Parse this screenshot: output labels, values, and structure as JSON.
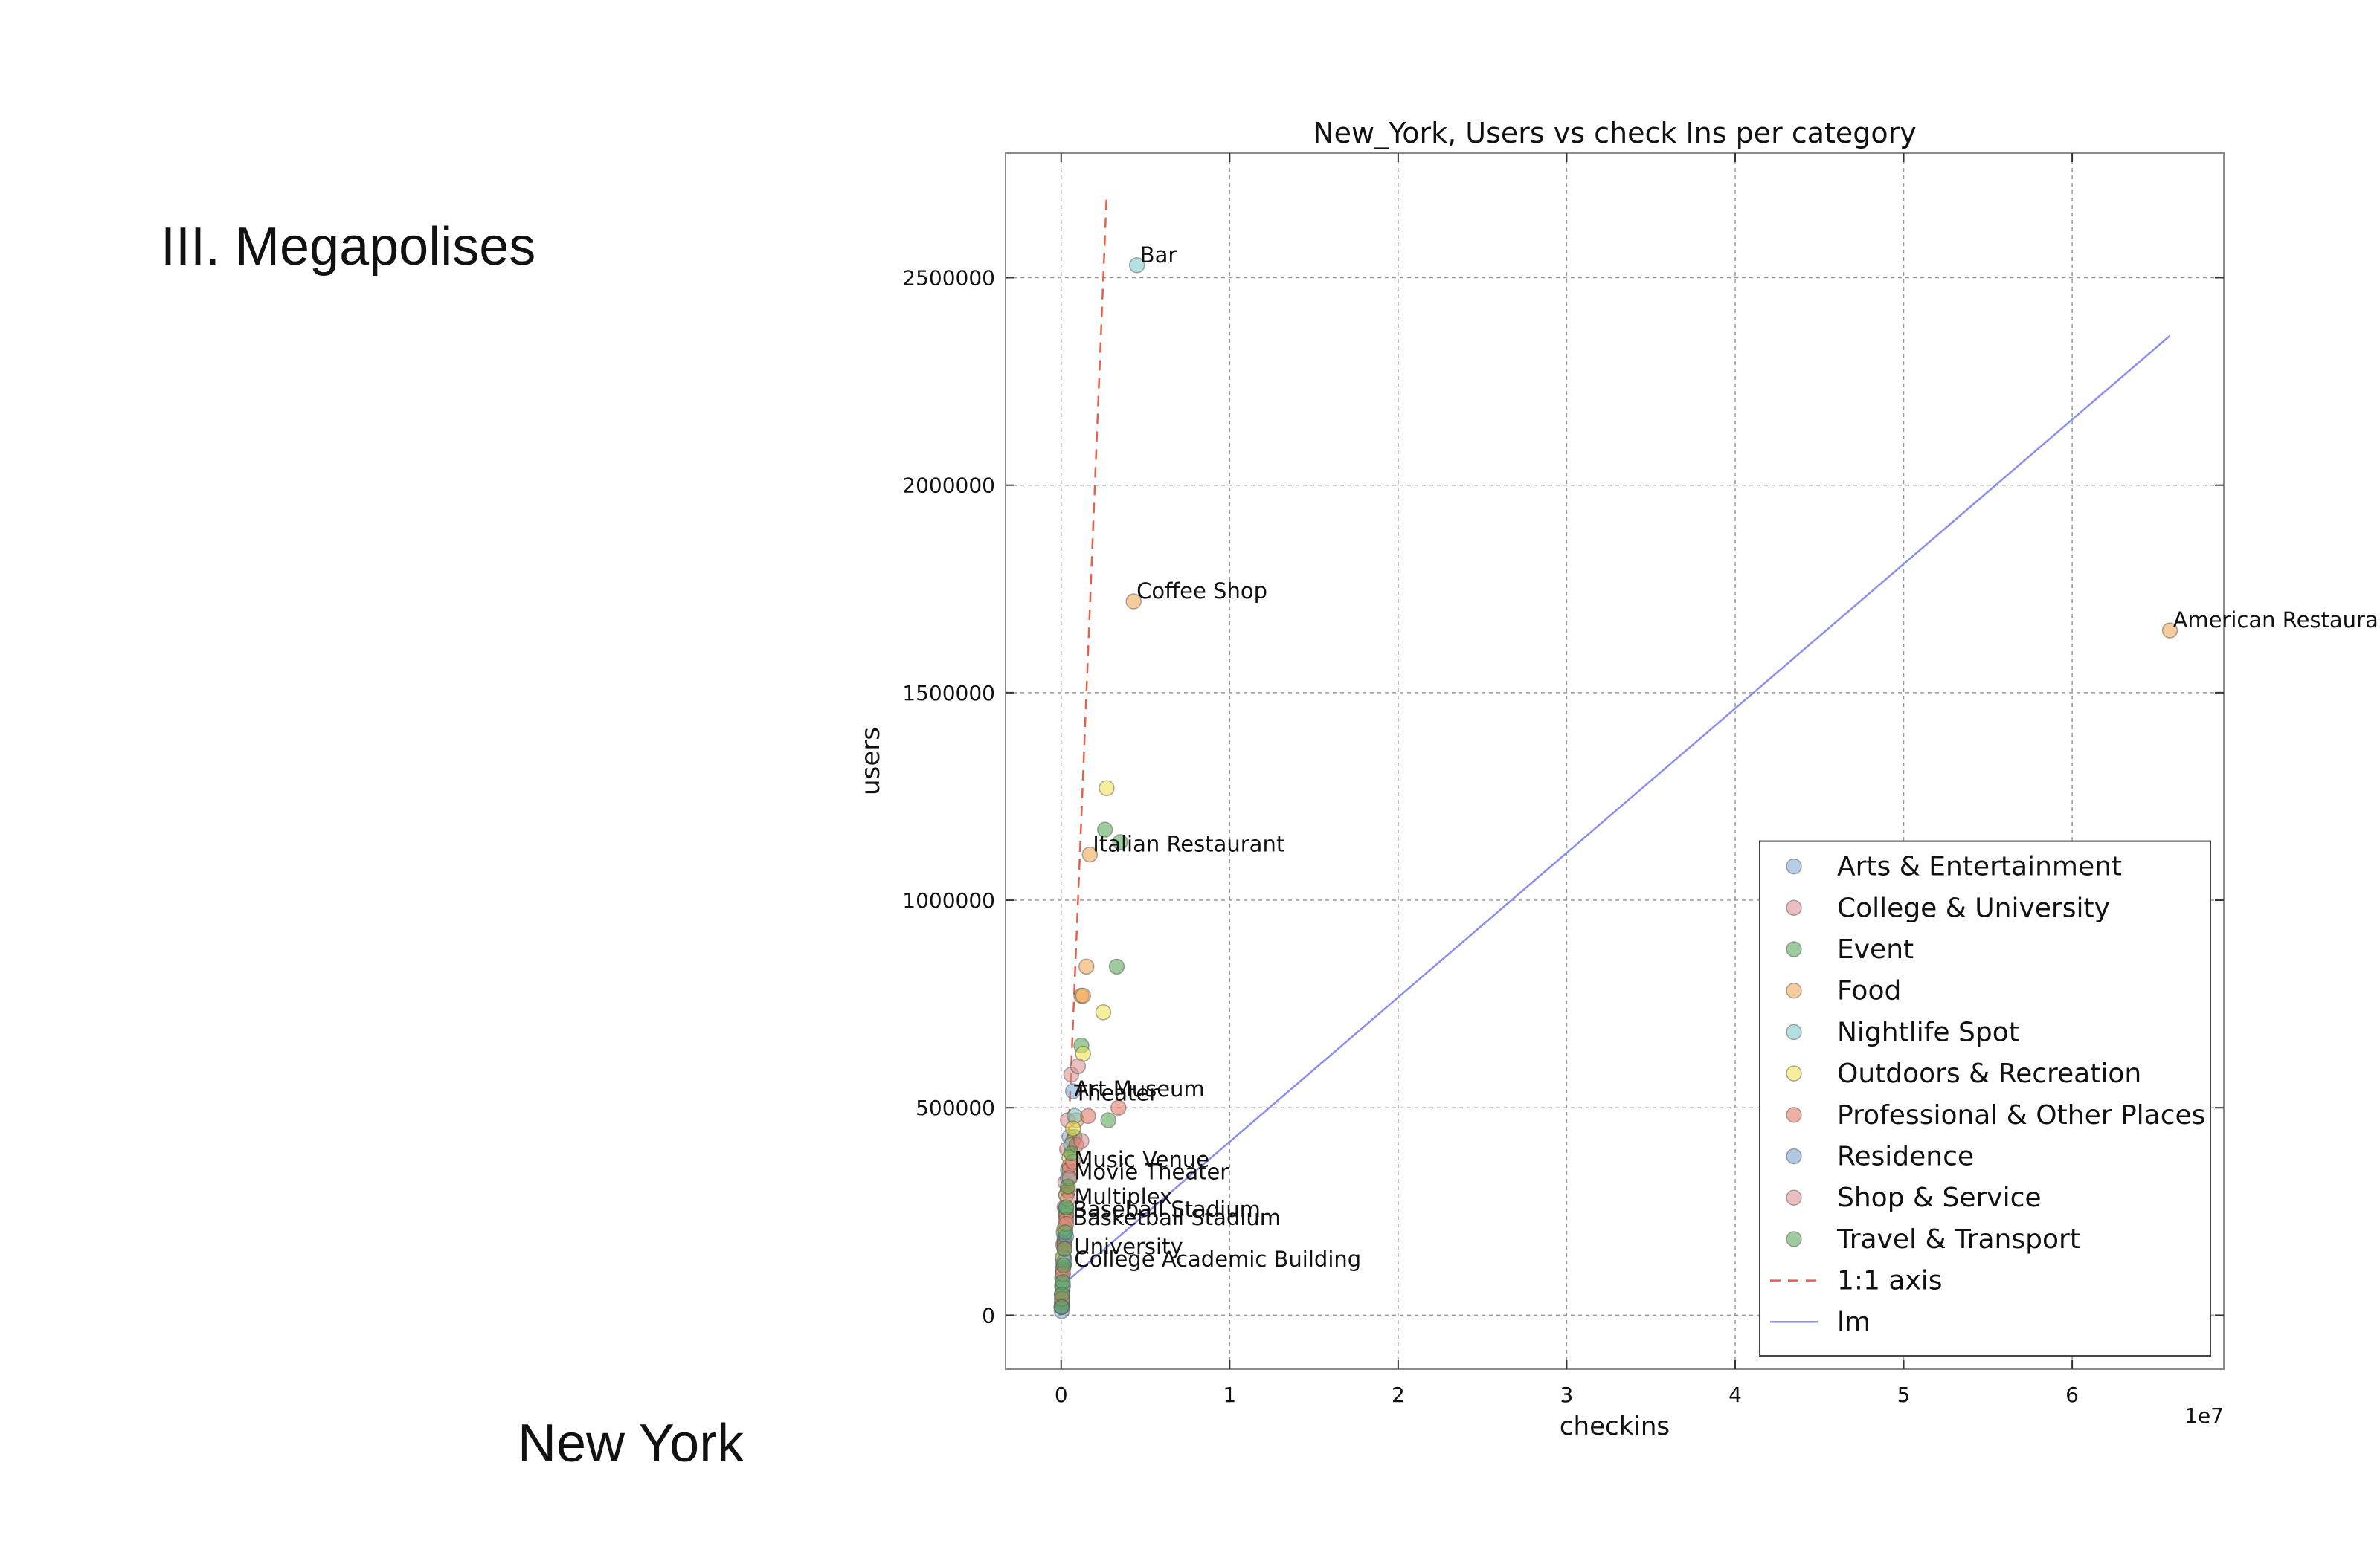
{
  "slide": {
    "heading": "III. Megapolises",
    "caption": "New York"
  },
  "chart_data": {
    "type": "scatter",
    "title": "New_York, Users vs check Ins per category",
    "xlabel": "checkins",
    "ylabel": "users",
    "x_offset_label": "1e7",
    "xlim": [
      -3300000,
      69000000
    ],
    "ylim": [
      -130000,
      2800000
    ],
    "x_ticks": [
      0,
      10000000,
      20000000,
      30000000,
      40000000,
      50000000,
      60000000
    ],
    "x_tick_labels": [
      "0",
      "1",
      "2",
      "3",
      "4",
      "5",
      "6"
    ],
    "y_ticks": [
      0,
      500000,
      1000000,
      1500000,
      2000000,
      2500000
    ],
    "y_tick_labels": [
      "0",
      "500000",
      "1000000",
      "1500000",
      "2000000",
      "2500000"
    ],
    "grid": true,
    "legend_position": "lower-right",
    "series": [
      {
        "name": "Arts & Entertainment",
        "color": "#7ba6d6",
        "points": [
          [
            700000,
            540000
          ],
          [
            500000,
            430000
          ],
          [
            400000,
            350000
          ],
          [
            300000,
            290000
          ],
          [
            300000,
            240000
          ],
          [
            250000,
            210000
          ],
          [
            200000,
            180000
          ],
          [
            150000,
            140000
          ],
          [
            100000,
            100000
          ],
          [
            80000,
            60000
          ],
          [
            50000,
            30000
          ],
          [
            30000,
            10000
          ]
        ]
      },
      {
        "name": "College & University",
        "color": "#d98a8a",
        "points": [
          [
            600000,
            580000
          ],
          [
            400000,
            470000
          ],
          [
            350000,
            400000
          ],
          [
            250000,
            320000
          ],
          [
            200000,
            260000
          ],
          [
            150000,
            200000
          ],
          [
            120000,
            170000
          ],
          [
            100000,
            130000
          ],
          [
            60000,
            90000
          ],
          [
            40000,
            50000
          ],
          [
            20000,
            20000
          ]
        ]
      },
      {
        "name": "Event",
        "color": "#4ea34e",
        "points": [
          [
            2600000,
            1170000
          ],
          [
            3500000,
            1140000
          ],
          [
            3300000,
            840000
          ],
          [
            2800000,
            470000
          ],
          [
            1200000,
            650000
          ],
          [
            800000,
            430000
          ],
          [
            500000,
            330000
          ],
          [
            300000,
            250000
          ],
          [
            200000,
            180000
          ],
          [
            150000,
            120000
          ],
          [
            100000,
            70000
          ],
          [
            50000,
            30000
          ]
        ]
      },
      {
        "name": "Food",
        "color": "#f0a24a",
        "points": [
          [
            4300000,
            1720000
          ],
          [
            65800000,
            1650000
          ],
          [
            1700000,
            1110000
          ],
          [
            1500000,
            840000
          ],
          [
            1200000,
            770000
          ],
          [
            1300000,
            770000
          ],
          [
            900000,
            470000
          ],
          [
            700000,
            420000
          ],
          [
            500000,
            350000
          ],
          [
            400000,
            300000
          ],
          [
            300000,
            240000
          ],
          [
            200000,
            170000
          ],
          [
            100000,
            110000
          ],
          [
            50000,
            50000
          ]
        ]
      },
      {
        "name": "Nightlife Spot",
        "color": "#74c8c8",
        "points": [
          [
            4500000,
            2530000
          ],
          [
            800000,
            480000
          ],
          [
            600000,
            410000
          ],
          [
            400000,
            330000
          ],
          [
            300000,
            260000
          ],
          [
            200000,
            190000
          ],
          [
            150000,
            140000
          ],
          [
            80000,
            80000
          ]
        ]
      },
      {
        "name": "Outdoors & Recreation",
        "color": "#ece24a",
        "points": [
          [
            2700000,
            1270000
          ],
          [
            2500000,
            730000
          ],
          [
            1300000,
            630000
          ],
          [
            700000,
            450000
          ],
          [
            500000,
            380000
          ],
          [
            300000,
            290000
          ],
          [
            200000,
            210000
          ],
          [
            100000,
            140000
          ],
          [
            50000,
            70000
          ]
        ]
      },
      {
        "name": "Professional & Other Places",
        "color": "#e0705a",
        "points": [
          [
            3400000,
            500000
          ],
          [
            1600000,
            480000
          ],
          [
            900000,
            410000
          ],
          [
            500000,
            360000
          ],
          [
            400000,
            300000
          ],
          [
            300000,
            230000
          ],
          [
            200000,
            170000
          ],
          [
            100000,
            110000
          ],
          [
            50000,
            40000
          ]
        ]
      },
      {
        "name": "Residence",
        "color": "#6f9ac8",
        "points": [
          [
            300000,
            190000
          ],
          [
            200000,
            130000
          ],
          [
            100000,
            70000
          ],
          [
            50000,
            20000
          ]
        ]
      },
      {
        "name": "Shop & Service",
        "color": "#d98a8a",
        "points": [
          [
            1000000,
            600000
          ],
          [
            1200000,
            420000
          ],
          [
            700000,
            370000
          ],
          [
            500000,
            330000
          ],
          [
            400000,
            280000
          ],
          [
            300000,
            220000
          ],
          [
            200000,
            160000
          ],
          [
            100000,
            100000
          ],
          [
            50000,
            40000
          ]
        ]
      },
      {
        "name": "Travel & Transport",
        "color": "#4ea34e",
        "points": [
          [
            600000,
            390000
          ],
          [
            400000,
            310000
          ],
          [
            300000,
            260000
          ],
          [
            250000,
            200000
          ],
          [
            200000,
            160000
          ],
          [
            150000,
            120000
          ],
          [
            100000,
            80000
          ],
          [
            50000,
            50000
          ],
          [
            20000,
            20000
          ]
        ]
      }
    ],
    "reference_lines": [
      {
        "name": "1:1 axis",
        "color": "#e8604a",
        "style": "dashed",
        "points": [
          [
            0,
            0
          ],
          [
            2700000,
            2700000
          ]
        ]
      },
      {
        "name": "lm",
        "color": "#8a8ef0",
        "style": "solid",
        "points": [
          [
            0,
            70000
          ],
          [
            65800000,
            2360000
          ]
        ]
      }
    ],
    "annotations": [
      {
        "text": "Bar",
        "x": 4500000,
        "y": 2530000
      },
      {
        "text": "Coffee Shop",
        "x": 4300000,
        "y": 1720000
      },
      {
        "text": "American Restaurant",
        "x": 65800000,
        "y": 1650000
      },
      {
        "text": "Italian Restaurant",
        "x": 1700000,
        "y": 1110000
      },
      {
        "text": "Art Museum",
        "x": 600000,
        "y": 520000
      },
      {
        "text": "Theater",
        "x": 600000,
        "y": 510000
      },
      {
        "text": "Music Venue",
        "x": 600000,
        "y": 350000
      },
      {
        "text": "Movie Theater",
        "x": 600000,
        "y": 320000
      },
      {
        "text": "Multiplex",
        "x": 600000,
        "y": 260000
      },
      {
        "text": "Baseball Stadium",
        "x": 500000,
        "y": 230000
      },
      {
        "text": "Basketball Stadium",
        "x": 500000,
        "y": 210000
      },
      {
        "text": "University",
        "x": 600000,
        "y": 140000
      },
      {
        "text": "College Academic Building",
        "x": 600000,
        "y": 110000
      }
    ]
  }
}
